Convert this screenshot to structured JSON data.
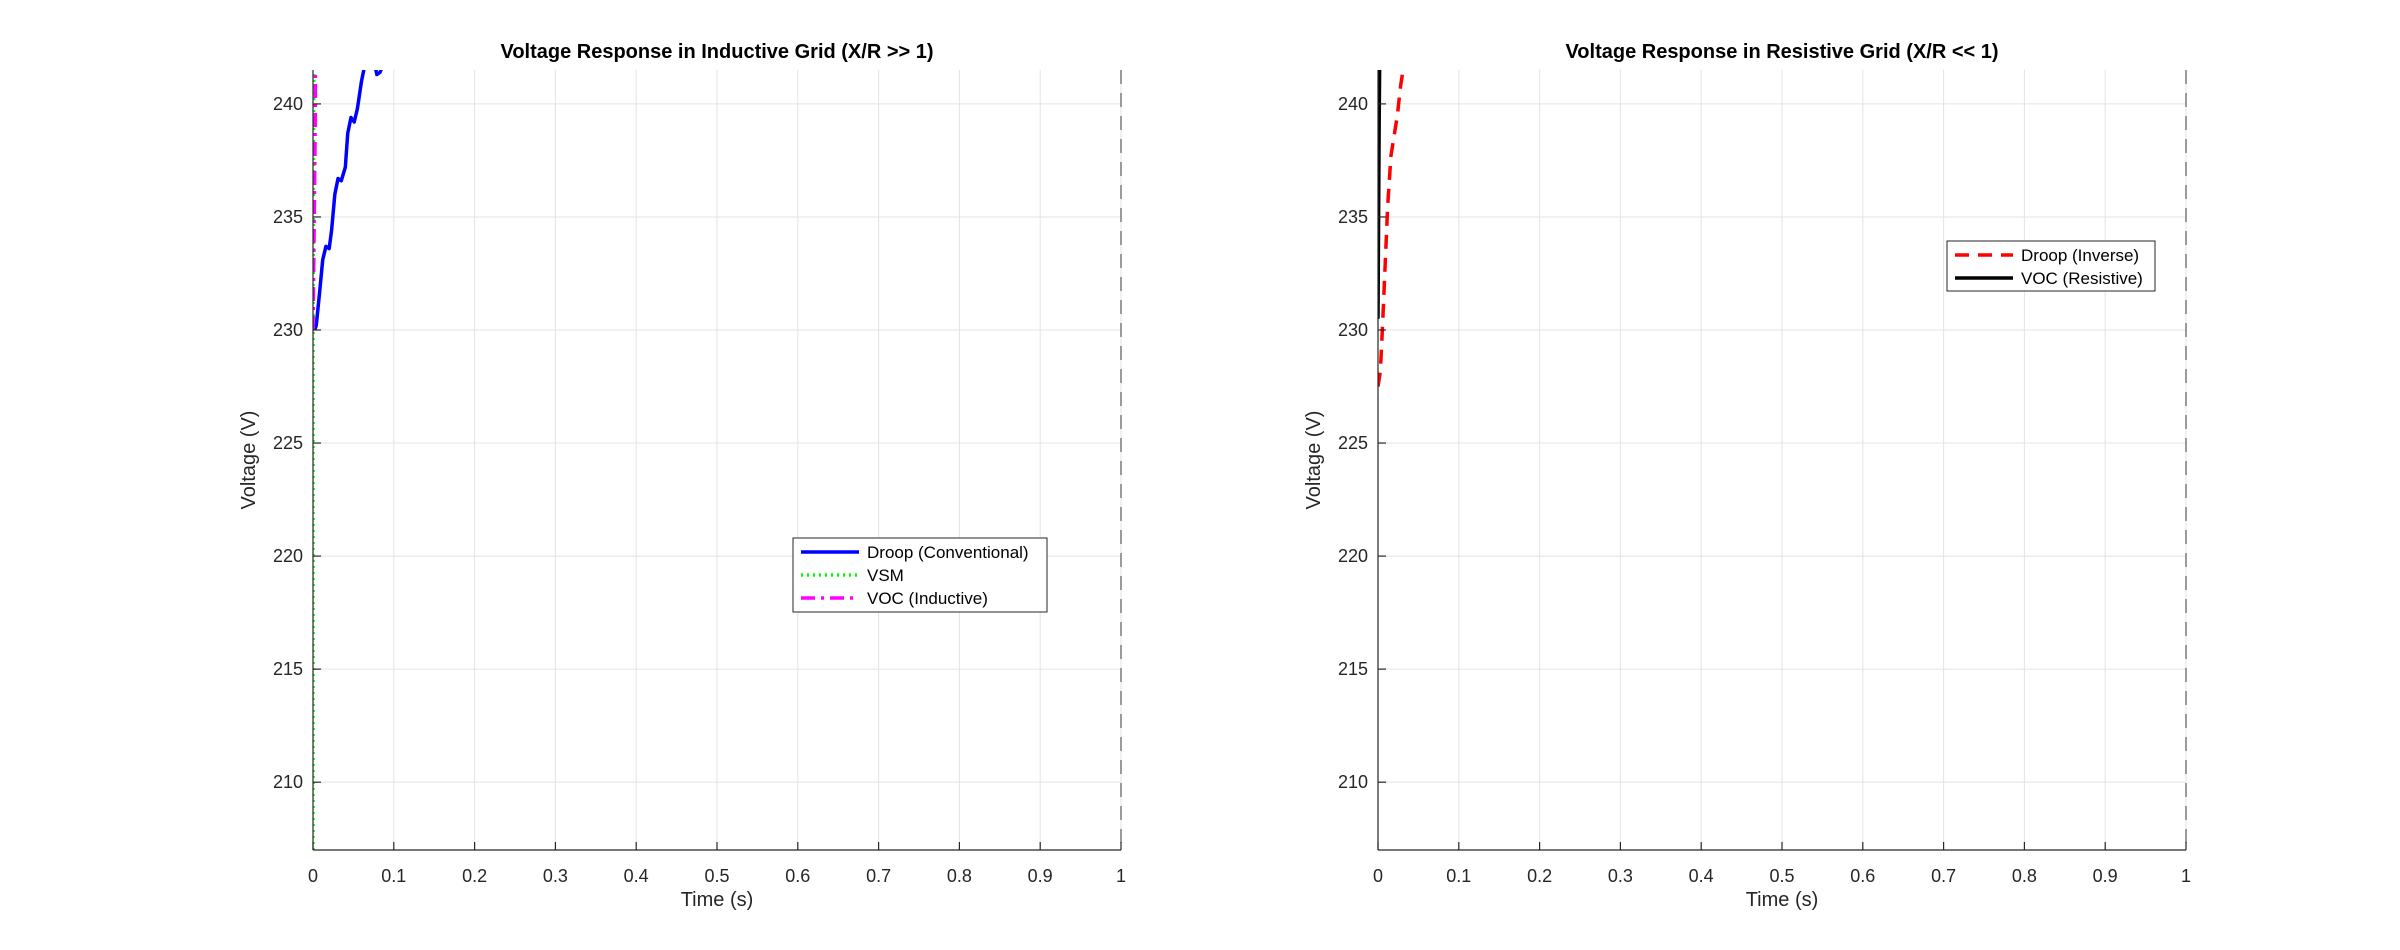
{
  "chart_data": [
    {
      "type": "line",
      "title": "Voltage Response in Inductive Grid (X/R >> 1)",
      "xlabel": "Time (s)",
      "ylabel": "Voltage (V)",
      "xlim": [
        0,
        1
      ],
      "ylim": [
        207,
        241.5
      ],
      "xticks": [
        0,
        0.1,
        0.2,
        0.3,
        0.4,
        0.5,
        0.6,
        0.7,
        0.8,
        0.9,
        1
      ],
      "xtick_labels": [
        "0",
        "0.1",
        "0.2",
        "0.3",
        "0.4",
        "0.5",
        "0.6",
        "0.7",
        "0.8",
        "0.9",
        "1"
      ],
      "yticks": [
        210,
        215,
        220,
        225,
        230,
        235,
        240
      ],
      "ytick_labels": [
        "210",
        "215",
        "220",
        "225",
        "230",
        "235",
        "240"
      ],
      "grid": true,
      "legend_position": "center-right",
      "vertical_dashed_line_x": 1,
      "series": [
        {
          "name": "Droop (Conventional)",
          "color": "#0000ff",
          "style": "solid",
          "x": [
            0.002,
            0.004,
            0.008,
            0.012,
            0.016,
            0.02,
            0.023,
            0.027,
            0.031,
            0.035,
            0.04,
            0.043,
            0.047,
            0.051,
            0.055,
            0.06,
            0.064,
            0.067,
            0.071,
            0.075,
            0.079,
            0.083,
            0.085
          ],
          "y": [
            230.0,
            230.2,
            231.6,
            233.1,
            233.7,
            233.6,
            234.4,
            236.0,
            236.7,
            236.6,
            237.2,
            238.7,
            239.4,
            239.2,
            239.8,
            241.0,
            241.7,
            241.6,
            241.9,
            242.0,
            241.3,
            241.4,
            241.6
          ]
        },
        {
          "name": "VSM",
          "color": "#00ff00",
          "style": "dotted",
          "x": [
            0.0,
            0.0,
            0.001,
            0.001
          ],
          "y": [
            207.0,
            230.0,
            241.5,
            241.5
          ]
        },
        {
          "name": "VOC (Inductive)",
          "color": "#ff00ff",
          "style": "dashdot",
          "x": [
            0.0,
            0.001,
            0.002,
            0.003,
            0.003
          ],
          "y": [
            230.0,
            233.0,
            236.5,
            240.0,
            241.5
          ]
        }
      ]
    },
    {
      "type": "line",
      "title": "Voltage Response in Resistive Grid (X/R << 1)",
      "xlabel": "Time (s)",
      "ylabel": "Voltage (V)",
      "xlim": [
        0,
        1
      ],
      "ylim": [
        207,
        241.5
      ],
      "xticks": [
        0,
        0.1,
        0.2,
        0.3,
        0.4,
        0.5,
        0.6,
        0.7,
        0.8,
        0.9,
        1
      ],
      "xtick_labels": [
        "0",
        "0.1",
        "0.2",
        "0.3",
        "0.4",
        "0.5",
        "0.6",
        "0.7",
        "0.8",
        "0.9",
        "1"
      ],
      "yticks": [
        210,
        215,
        220,
        225,
        230,
        235,
        240
      ],
      "ytick_labels": [
        "210",
        "215",
        "220",
        "225",
        "230",
        "235",
        "240"
      ],
      "grid": true,
      "legend_position": "top-right",
      "vertical_dashed_line_x": 1,
      "series": [
        {
          "name": "Droop (Inverse)",
          "color": "#ff0000",
          "style": "dashed",
          "x": [
            0.0,
            0.003,
            0.006,
            0.009,
            0.012,
            0.016,
            0.02,
            0.024,
            0.028,
            0.031
          ],
          "y": [
            227.5,
            228.2,
            230.5,
            233.0,
            235.5,
            237.7,
            238.6,
            239.5,
            240.8,
            241.5
          ]
        },
        {
          "name": "VOC (Resistive)",
          "color": "#000000",
          "style": "solid",
          "x": [
            0.0,
            0.0005,
            0.001,
            0.0015,
            0.002
          ],
          "y": [
            230.5,
            233.5,
            236.5,
            239.5,
            241.5
          ]
        }
      ]
    }
  ]
}
